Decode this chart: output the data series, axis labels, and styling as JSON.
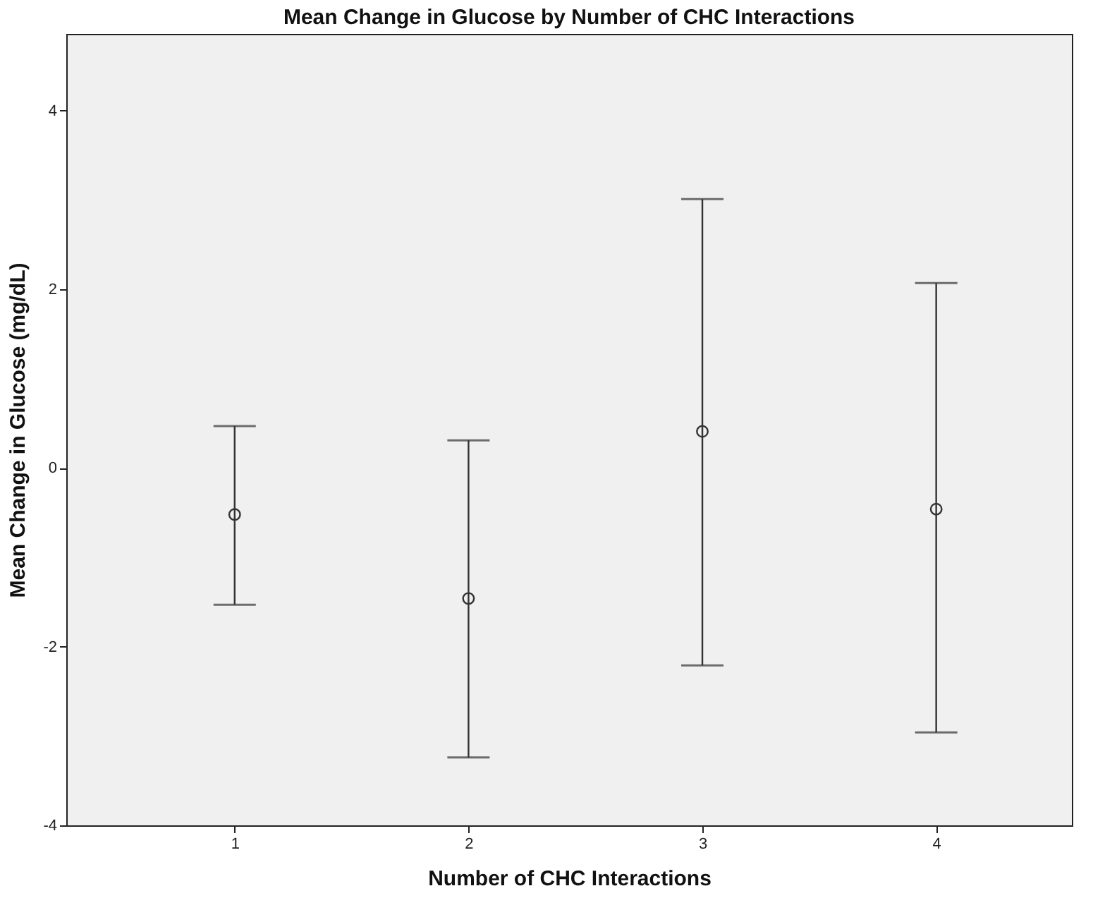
{
  "chart_data": {
    "type": "scatter",
    "title": "Mean Change in Glucose by Number of CHC Interactions",
    "xlabel": "Number of CHC Interactions",
    "ylabel": "Mean Change in Glucose (mg/dL)",
    "categories": [
      "1",
      "2",
      "3",
      "4"
    ],
    "values": [
      -0.52,
      -1.46,
      0.41,
      -0.46
    ],
    "errors": [
      [
        -1.53,
        0.47
      ],
      [
        -3.24,
        0.31
      ],
      [
        -2.21,
        3.01
      ],
      [
        -2.96,
        2.07
      ]
    ],
    "color": "#333333",
    "marker": "circle",
    "ylim": [
      -4,
      4.86
    ],
    "yticks": [
      -4,
      -2,
      0,
      2,
      4
    ],
    "grid": false
  }
}
